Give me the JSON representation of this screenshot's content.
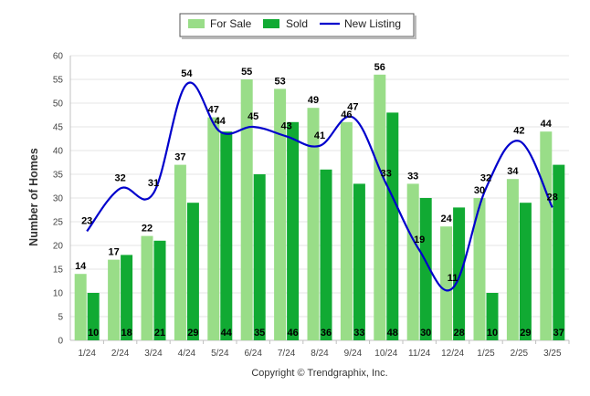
{
  "chart_data": {
    "type": "bar",
    "categories": [
      "1/24",
      "2/24",
      "3/24",
      "4/24",
      "5/24",
      "6/24",
      "7/24",
      "8/24",
      "9/24",
      "10/24",
      "11/24",
      "12/24",
      "1/25",
      "2/25",
      "3/25"
    ],
    "series": [
      {
        "name": "For Sale",
        "type": "bar",
        "color": "#99dd88",
        "values": [
          14,
          17,
          22,
          37,
          47,
          55,
          53,
          49,
          46,
          56,
          33,
          24,
          30,
          34,
          44
        ]
      },
      {
        "name": "Sold",
        "type": "bar",
        "color": "#11aa33",
        "values": [
          10,
          18,
          21,
          29,
          44,
          35,
          46,
          36,
          33,
          48,
          30,
          28,
          10,
          29,
          37
        ]
      },
      {
        "name": "New Listing",
        "type": "line",
        "color": "#0000cc",
        "values": [
          23,
          32,
          31,
          54,
          44,
          45,
          43,
          41,
          47,
          33,
          19,
          11,
          32,
          42,
          28
        ]
      }
    ],
    "ylabel": "Number of Homes",
    "ylim": [
      0,
      60
    ],
    "yticks": [
      0,
      5,
      10,
      15,
      20,
      25,
      30,
      35,
      40,
      45,
      50,
      55,
      60
    ],
    "grid": true,
    "legend_position": "top-center",
    "credit": "Copyright © Trendgraphix, Inc."
  }
}
